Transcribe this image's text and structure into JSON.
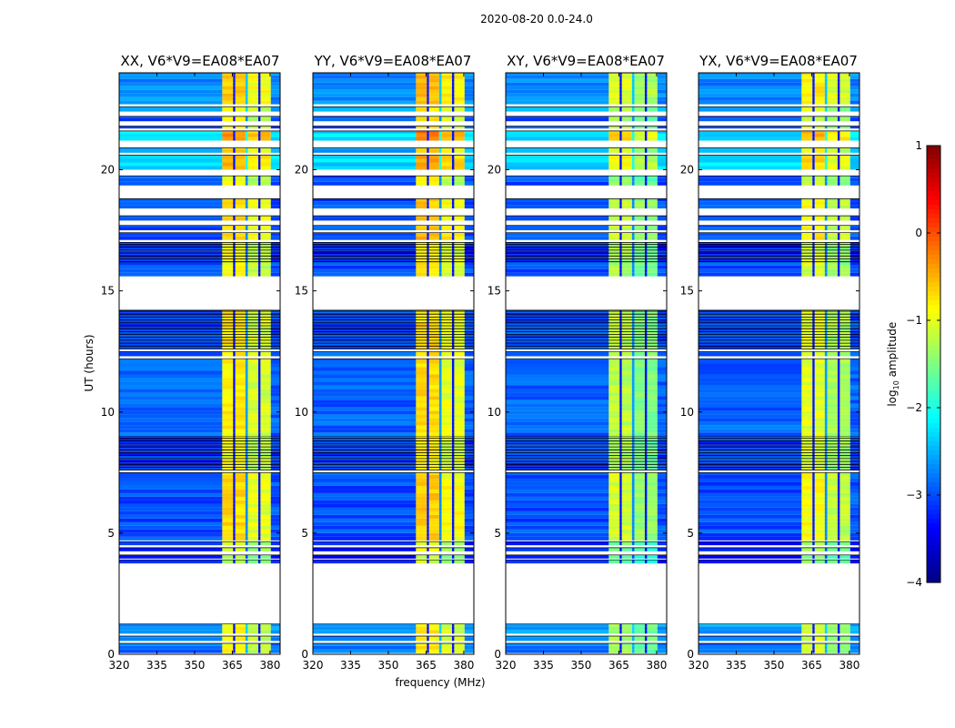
{
  "suptitle": "2020-08-20 0.0-24.0",
  "xlabel": "frequency (MHz)",
  "ylabel": "UT (hours)",
  "colorbar": {
    "label_prefix": "log",
    "label_sub": "10",
    "label_suffix": " amplitude",
    "range": [
      -4,
      1
    ],
    "ticks": [
      "1",
      "0",
      "−1",
      "−2",
      "−3",
      "−4"
    ],
    "tick_values": [
      1,
      0,
      -1,
      -2,
      -3,
      -4
    ],
    "colormap": "jet"
  },
  "chart_data": {
    "type": "heatmap",
    "title": "2020-08-20 0.0-24.0",
    "xlabel": "frequency (MHz)",
    "ylabel": "UT (hours)",
    "xlim": [
      320,
      384
    ],
    "ylim": [
      0,
      24
    ],
    "xticks": [
      "320",
      "335",
      "350",
      "365",
      "380"
    ],
    "xtick_values": [
      320,
      335,
      350,
      365,
      380
    ],
    "yticks": [
      "0",
      "5",
      "10",
      "15",
      "20"
    ],
    "ytick_values": [
      0,
      5,
      10,
      15,
      20
    ],
    "value_label": "log10 amplitude",
    "freq_blocks": [
      {
        "from": 320,
        "to": 361,
        "kind": "off"
      },
      {
        "from": 361,
        "to": 365.3,
        "kind": "band"
      },
      {
        "from": 365.3,
        "to": 366.2,
        "kind": "gap"
      },
      {
        "from": 366.2,
        "to": 370.2,
        "kind": "band"
      },
      {
        "from": 370.2,
        "to": 371.2,
        "kind": "off2"
      },
      {
        "from": 371.2,
        "to": 375.3,
        "kind": "band2"
      },
      {
        "from": 375.3,
        "to": 376.2,
        "kind": "gap"
      },
      {
        "from": 376.2,
        "to": 380.3,
        "kind": "band2"
      },
      {
        "from": 380.3,
        "to": 384,
        "kind": "off"
      }
    ],
    "time_segments": [
      {
        "from": 0.05,
        "to": 0.45,
        "off": -2.8,
        "band": -1.0,
        "lines": false
      },
      {
        "from": 0.55,
        "to": 0.75,
        "off": -2.8,
        "band": -1.0,
        "lines": false
      },
      {
        "from": 0.85,
        "to": 1.25,
        "off": -2.6,
        "band": -1.0,
        "lines": false
      },
      {
        "from": 3.75,
        "to": 3.9,
        "off": -3.3,
        "band": -1.3,
        "lines": false
      },
      {
        "from": 3.95,
        "to": 4.1,
        "off": -3.3,
        "band": -1.3,
        "lines": false
      },
      {
        "from": 4.25,
        "to": 4.4,
        "off": -3.2,
        "band": -1.2,
        "lines": false
      },
      {
        "from": 4.5,
        "to": 4.65,
        "off": -3.2,
        "band": -1.2,
        "lines": false
      },
      {
        "from": 4.7,
        "to": 7.5,
        "off": -3.0,
        "band": -0.8,
        "lines": false
      },
      {
        "from": 7.6,
        "to": 9.0,
        "off": -3.1,
        "band": -1.0,
        "lines": true
      },
      {
        "from": 9.0,
        "to": 12.2,
        "off": -2.9,
        "band": -0.9,
        "lines": false
      },
      {
        "from": 12.3,
        "to": 12.5,
        "off": -2.9,
        "band": -0.9,
        "lines": false
      },
      {
        "from": 12.6,
        "to": 14.2,
        "off": -3.0,
        "band": -0.9,
        "lines": true
      },
      {
        "from": 15.6,
        "to": 16.2,
        "off": -3.0,
        "band": -1.0,
        "lines": false
      },
      {
        "from": 16.2,
        "to": 17.0,
        "off": -3.2,
        "band": -1.0,
        "lines": true
      },
      {
        "from": 17.1,
        "to": 17.4,
        "off": -3.0,
        "band": -0.7,
        "lines": false
      },
      {
        "from": 17.5,
        "to": 17.7,
        "off": -3.0,
        "band": -0.8,
        "lines": false
      },
      {
        "from": 17.9,
        "to": 18.1,
        "off": -3.0,
        "band": -0.8,
        "lines": false
      },
      {
        "from": 18.4,
        "to": 18.8,
        "off": -3.0,
        "band": -0.8,
        "lines": false
      },
      {
        "from": 19.35,
        "to": 19.75,
        "off": -3.0,
        "band": -1.1,
        "lines": false
      },
      {
        "from": 20.0,
        "to": 20.6,
        "off": -2.3,
        "band": -0.6,
        "lines": false
      },
      {
        "from": 20.7,
        "to": 20.9,
        "off": -2.5,
        "band": -0.8,
        "lines": false
      },
      {
        "from": 21.2,
        "to": 21.6,
        "off": -2.3,
        "band": -0.4,
        "lines": false
      },
      {
        "from": 21.7,
        "to": 21.8,
        "off": -3.0,
        "band": -1.0,
        "lines": false
      },
      {
        "from": 22.0,
        "to": 22.2,
        "off": -3.0,
        "band": -1.0,
        "lines": false
      },
      {
        "from": 22.4,
        "to": 22.6,
        "off": -2.6,
        "band": -1.0,
        "lines": false
      },
      {
        "from": 22.7,
        "to": 24.0,
        "off": -2.7,
        "band": -0.7,
        "lines": false
      }
    ],
    "flagged_ranges_hours": [
      [
        1.25,
        3.75
      ],
      [
        14.2,
        15.5
      ],
      [
        18.8,
        19.35
      ],
      [
        19.75,
        20.0
      ]
    ],
    "panels": [
      {
        "title": "XX, V6*V9=EA08*EA07",
        "band_offset": 0.1
      },
      {
        "title": "YY, V6*V9=EA08*EA07",
        "band_offset": 0.2
      },
      {
        "title": "XY, V6*V9=EA08*EA07",
        "band_offset": -0.3
      },
      {
        "title": "YX, V6*V9=EA08*EA07",
        "band_offset": -0.1
      }
    ]
  }
}
